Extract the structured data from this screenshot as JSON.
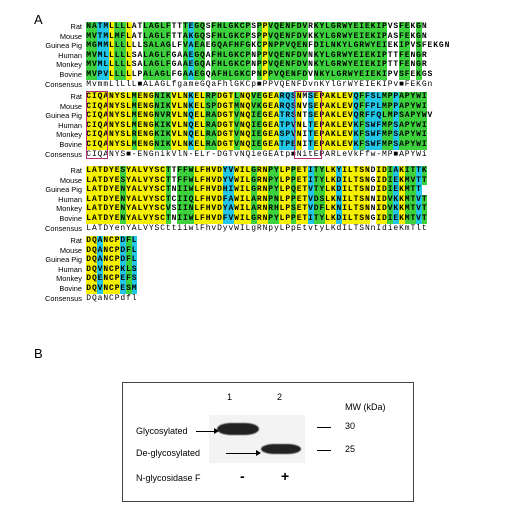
{
  "panel_a_label": "A",
  "panel_b_label": "B",
  "alignment": {
    "species": [
      "Rat",
      "Mouse",
      "Guinea Pig",
      "Human",
      "Monkey",
      "Bovine",
      "Consensus"
    ],
    "blocks": [
      [
        "NATMLLLLATLAGLFTTTEGQSFHLGKCPSPPVQENFDVRKYLGRWYEIEKIPVSFEKGN",
        "MVTMLMFLATLAGLFTTAKGQSFHLGKCPSPPVQENFDVKKYLGRWYEIEKIPASFEKGN",
        "MGMMLLLLLLSALAGLFVAEAEGQAFHFGKCPNPPVQENFDILNKYLGRWYEIEKIPVSFEKGN",
        "MVMLLLLLSALAGLFGAAEGQAFHLGKCPNPPVQENFDVNKYLGRWYEIEKIPTTFENGR",
        "MVMLLLLLSALAGLFGAAEGQAFHLGKCPNPPVQENFDVNKYLGRWYEIEKIPTTFENGR",
        "MVPVLLLLLPALAGLFGAAEGQAFHLGKCPNPPVQENFDVNKYLGRWYEIEKIPVSFEKGS",
        "MvmmLlLlL■ALAGLfgameGQaFhlGKCp■PPVQENFDvnKYlGrWYEIEKIPv■FEKGn"
      ],
      [
        "CIQANYSLMENGNIKVLNKELRPDGTLNQVEGEARQSNMSEPAKLEVQFFSLMPPAPYWI",
        "CIQANYSLMENGNIKVLNKELSPDGTMNQVKGEARQSNVSEPAKLEVQFFPLMPPAPYWI",
        "CIQANYSLMENGNVRVLNQELRADGTVNQIEGEATRSNTSEPAKLEVQRFFQLMPSAPYWV",
        "CIQANYSLMENGKIKVLNQELRADGTVNQIEGEATPVNLTEPAKLEVKFSWFMPSAPYWI",
        "CIQANYSLRENGKIKVLNQELRADGTVNQIEGEASPVNITEPAKLEVKFSWFMPSAPYWI",
        "CIQANYSLMENGNIKVLNKELRADGTVNQIEGEATPENITEPAKLEVKFSWFMPSAPYWI",
        "CIQANYS■-ENGnikVlN-ELr-DGTvNQieGEAtp■NitEPARLeVkFfw-MP■APYWi"
      ],
      [
        "LATDYESYALVYSCTTFFWLFHVDYVWILGRNPYLPPETITYLKYILTSNDIDIAKITTK",
        "LATDYESYALVYSCTTFFWLFHVDYVWILGRNPYLPPETITYLKDILTSNGIDIEKMVTT",
        "LATDYENYALVYSCTNIIWLFHVDHIWILGRNPYLPQETVTYLKDILTSNDIDIEKMTT",
        "LATDYENYALVYSCTCIIQLFHVDFAWILARNPNLPPETVDSLKNILTSNNIDVKKMTVT",
        "LATDYENYALVYSCVSIINLFHVDYAWILARNRHLPSETVDFLKNILTSNNIDVKKMTVT",
        "LATDYENYALVYSCTNIIWLFHVDFVWILGRNPYLPPETITYLKDILTSNGIDIEKMTVT",
        "LATDYenYALVYSCttiiwlFhvDyvWILgRNpyLPpEtvtyLKdILTSNnIdieKmTlt"
      ],
      [
        "DQANCPDFL",
        "DQANCPDFL",
        "DQANCPDFL",
        "DQVNCPKLS",
        "DQENCPEFS",
        "DQVNCPESM",
        "DQaNCPdfl"
      ]
    ]
  },
  "blot": {
    "lane_labels": [
      "1",
      "2"
    ],
    "mw_header": "MW (kDa)",
    "mw_markers": [
      "30",
      "25"
    ],
    "row_labels": [
      "Glycosylated",
      "De-glycosylated"
    ],
    "treatment_label": "N-glycosidase F",
    "treatment_values": [
      "-",
      "+"
    ]
  }
}
